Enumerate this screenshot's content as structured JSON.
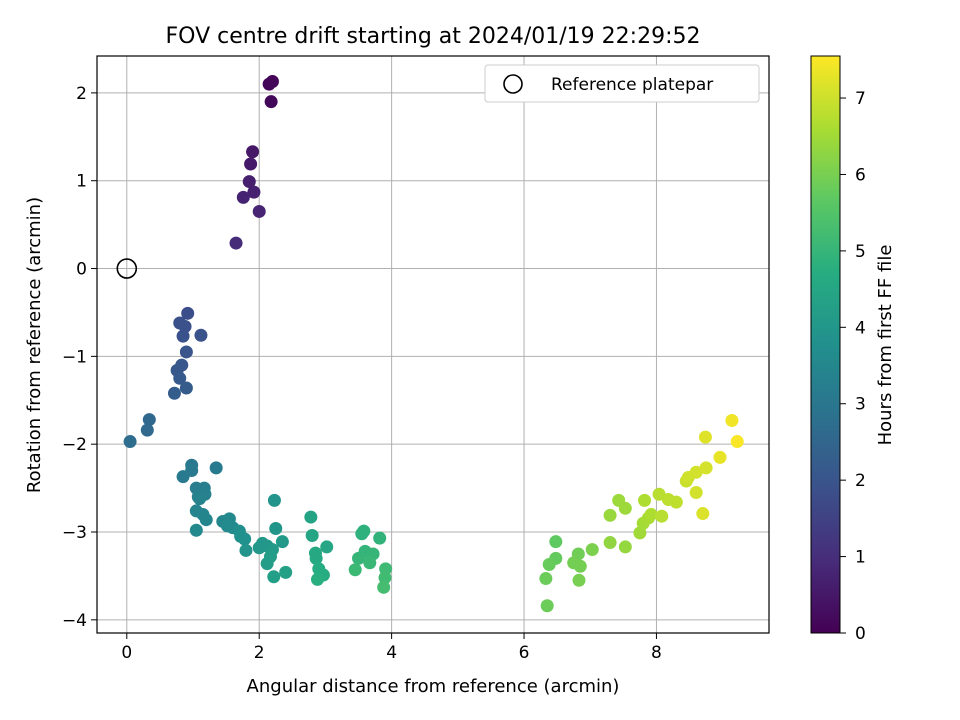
{
  "chart_data": {
    "type": "scatter",
    "title": "FOV centre drift starting at 2024/01/19 22:29:52",
    "xlabel": "Angular distance from reference (arcmin)",
    "ylabel": "Rotation from reference (arcmin)",
    "xlim": [
      -0.45,
      9.7
    ],
    "ylim": [
      -4.15,
      2.42
    ],
    "xticks": [
      0,
      2,
      4,
      6,
      8
    ],
    "yticks": [
      -4,
      -3,
      -2,
      -1,
      0,
      1,
      2
    ],
    "grid": true,
    "legend_position": "top-right",
    "legend": {
      "label": "Reference platepar",
      "marker": "hollow-circle"
    },
    "reference_point": {
      "x": 0,
      "y": 0
    },
    "colorbar": {
      "label": "Hours from first FF file",
      "colormap": "viridis",
      "range": [
        0,
        7.55
      ],
      "ticks": [
        0,
        1,
        2,
        3,
        4,
        5,
        6,
        7
      ]
    },
    "colors": [
      "#440154",
      "#472c7a",
      "#3b518b",
      "#2c718e",
      "#21908d",
      "#27ad81",
      "#5cc863",
      "#aadc32",
      "#fde725"
    ],
    "points": [
      {
        "x": 2.2,
        "y": 2.13,
        "c": 0.05
      },
      {
        "x": 2.15,
        "y": 2.1,
        "c": 0.1
      },
      {
        "x": 2.18,
        "y": 1.9,
        "c": 0.15
      },
      {
        "x": 1.9,
        "y": 1.33,
        "c": 0.5
      },
      {
        "x": 1.87,
        "y": 1.19,
        "c": 0.55
      },
      {
        "x": 1.85,
        "y": 0.99,
        "c": 0.65
      },
      {
        "x": 1.92,
        "y": 0.87,
        "c": 0.7
      },
      {
        "x": 1.76,
        "y": 0.81,
        "c": 0.75
      },
      {
        "x": 2.0,
        "y": 0.65,
        "c": 0.8
      },
      {
        "x": 1.65,
        "y": 0.29,
        "c": 0.95
      },
      {
        "x": 0.92,
        "y": -0.51,
        "c": 1.8
      },
      {
        "x": 0.8,
        "y": -0.62,
        "c": 1.85
      },
      {
        "x": 0.88,
        "y": -0.66,
        "c": 1.9
      },
      {
        "x": 0.85,
        "y": -0.77,
        "c": 1.92
      },
      {
        "x": 1.12,
        "y": -0.76,
        "c": 1.95
      },
      {
        "x": 0.9,
        "y": -0.95,
        "c": 2.0
      },
      {
        "x": 0.83,
        "y": -1.1,
        "c": 2.05
      },
      {
        "x": 0.76,
        "y": -1.16,
        "c": 2.1
      },
      {
        "x": 0.8,
        "y": -1.25,
        "c": 2.15
      },
      {
        "x": 0.9,
        "y": -1.36,
        "c": 2.2
      },
      {
        "x": 0.72,
        "y": -1.42,
        "c": 2.25
      },
      {
        "x": 0.34,
        "y": -1.72,
        "c": 2.55
      },
      {
        "x": 0.31,
        "y": -1.84,
        "c": 2.6
      },
      {
        "x": 0.05,
        "y": -1.97,
        "c": 2.7
      },
      {
        "x": 0.98,
        "y": -2.24,
        "c": 3.05
      },
      {
        "x": 0.85,
        "y": -2.37,
        "c": 3.1
      },
      {
        "x": 0.98,
        "y": -2.3,
        "c": 3.1
      },
      {
        "x": 1.35,
        "y": -2.27,
        "c": 3.15
      },
      {
        "x": 1.05,
        "y": -2.5,
        "c": 3.2
      },
      {
        "x": 1.17,
        "y": -2.5,
        "c": 3.25
      },
      {
        "x": 1.08,
        "y": -2.6,
        "c": 3.3
      },
      {
        "x": 1.18,
        "y": -2.57,
        "c": 3.3
      },
      {
        "x": 1.1,
        "y": -2.62,
        "c": 3.35
      },
      {
        "x": 1.05,
        "y": -2.76,
        "c": 3.4
      },
      {
        "x": 1.15,
        "y": -2.8,
        "c": 3.4
      },
      {
        "x": 1.2,
        "y": -2.86,
        "c": 3.45
      },
      {
        "x": 1.45,
        "y": -2.88,
        "c": 3.5
      },
      {
        "x": 1.55,
        "y": -2.85,
        "c": 3.55
      },
      {
        "x": 1.05,
        "y": -2.98,
        "c": 3.55
      },
      {
        "x": 1.52,
        "y": -2.93,
        "c": 3.6
      },
      {
        "x": 1.6,
        "y": -2.95,
        "c": 3.6
      },
      {
        "x": 1.7,
        "y": -2.99,
        "c": 3.7
      },
      {
        "x": 1.72,
        "y": -3.05,
        "c": 3.8
      },
      {
        "x": 1.78,
        "y": -3.08,
        "c": 3.8
      },
      {
        "x": 1.8,
        "y": -3.21,
        "c": 3.9
      },
      {
        "x": 2.23,
        "y": -2.64,
        "c": 3.9
      },
      {
        "x": 2.25,
        "y": -2.96,
        "c": 3.95
      },
      {
        "x": 2.05,
        "y": -3.13,
        "c": 4.0
      },
      {
        "x": 2.0,
        "y": -3.18,
        "c": 4.0
      },
      {
        "x": 2.12,
        "y": -3.16,
        "c": 4.05
      },
      {
        "x": 2.2,
        "y": -3.2,
        "c": 4.1
      },
      {
        "x": 2.35,
        "y": -3.11,
        "c": 4.1
      },
      {
        "x": 2.17,
        "y": -3.28,
        "c": 4.15
      },
      {
        "x": 2.12,
        "y": -3.36,
        "c": 4.2
      },
      {
        "x": 2.22,
        "y": -3.51,
        "c": 4.25
      },
      {
        "x": 2.4,
        "y": -3.46,
        "c": 4.3
      },
      {
        "x": 2.78,
        "y": -2.83,
        "c": 4.4
      },
      {
        "x": 2.8,
        "y": -3.04,
        "c": 4.45
      },
      {
        "x": 3.02,
        "y": -3.17,
        "c": 4.5
      },
      {
        "x": 2.85,
        "y": -3.24,
        "c": 4.55
      },
      {
        "x": 2.86,
        "y": -3.3,
        "c": 4.6
      },
      {
        "x": 2.9,
        "y": -3.42,
        "c": 4.65
      },
      {
        "x": 2.97,
        "y": -3.49,
        "c": 4.7
      },
      {
        "x": 2.88,
        "y": -3.54,
        "c": 4.75
      },
      {
        "x": 3.58,
        "y": -2.99,
        "c": 4.85
      },
      {
        "x": 3.55,
        "y": -3.02,
        "c": 4.85
      },
      {
        "x": 3.82,
        "y": -3.07,
        "c": 4.9
      },
      {
        "x": 3.6,
        "y": -3.22,
        "c": 4.95
      },
      {
        "x": 3.72,
        "y": -3.25,
        "c": 5.0
      },
      {
        "x": 3.5,
        "y": -3.3,
        "c": 5.0
      },
      {
        "x": 3.67,
        "y": -3.35,
        "c": 5.05
      },
      {
        "x": 3.45,
        "y": -3.43,
        "c": 5.1
      },
      {
        "x": 3.91,
        "y": -3.42,
        "c": 5.15
      },
      {
        "x": 3.9,
        "y": -3.52,
        "c": 5.2
      },
      {
        "x": 3.88,
        "y": -3.63,
        "c": 5.25
      },
      {
        "x": 6.48,
        "y": -3.11,
        "c": 5.7
      },
      {
        "x": 6.48,
        "y": -3.3,
        "c": 5.75
      },
      {
        "x": 6.38,
        "y": -3.37,
        "c": 5.8
      },
      {
        "x": 6.33,
        "y": -3.53,
        "c": 5.85
      },
      {
        "x": 6.35,
        "y": -3.84,
        "c": 5.85
      },
      {
        "x": 6.82,
        "y": -3.25,
        "c": 5.9
      },
      {
        "x": 6.75,
        "y": -3.35,
        "c": 5.95
      },
      {
        "x": 6.85,
        "y": -3.39,
        "c": 5.95
      },
      {
        "x": 6.83,
        "y": -3.55,
        "c": 6.0
      },
      {
        "x": 7.03,
        "y": -3.2,
        "c": 6.05
      },
      {
        "x": 7.3,
        "y": -3.12,
        "c": 6.3
      },
      {
        "x": 7.53,
        "y": -3.17,
        "c": 6.35
      },
      {
        "x": 7.3,
        "y": -2.81,
        "c": 6.4
      },
      {
        "x": 7.43,
        "y": -2.64,
        "c": 6.45
      },
      {
        "x": 7.53,
        "y": -2.73,
        "c": 6.45
      },
      {
        "x": 7.75,
        "y": -3.01,
        "c": 6.5
      },
      {
        "x": 7.8,
        "y": -2.9,
        "c": 6.55
      },
      {
        "x": 7.88,
        "y": -2.84,
        "c": 6.6
      },
      {
        "x": 7.92,
        "y": -2.8,
        "c": 6.65
      },
      {
        "x": 7.82,
        "y": -2.64,
        "c": 6.65
      },
      {
        "x": 8.04,
        "y": -2.57,
        "c": 6.75
      },
      {
        "x": 8.08,
        "y": -2.82,
        "c": 6.75
      },
      {
        "x": 8.18,
        "y": -2.63,
        "c": 6.8
      },
      {
        "x": 8.3,
        "y": -2.66,
        "c": 6.85
      },
      {
        "x": 8.45,
        "y": -2.42,
        "c": 6.95
      },
      {
        "x": 8.48,
        "y": -2.38,
        "c": 7.0
      },
      {
        "x": 8.6,
        "y": -2.32,
        "c": 7.05
      },
      {
        "x": 8.6,
        "y": -2.55,
        "c": 7.05
      },
      {
        "x": 8.75,
        "y": -2.27,
        "c": 7.1
      },
      {
        "x": 8.7,
        "y": -2.79,
        "c": 7.15
      },
      {
        "x": 8.74,
        "y": -1.92,
        "c": 7.2
      },
      {
        "x": 8.96,
        "y": -2.15,
        "c": 7.3
      },
      {
        "x": 9.14,
        "y": -1.73,
        "c": 7.4
      },
      {
        "x": 9.22,
        "y": -1.97,
        "c": 7.5
      }
    ]
  }
}
